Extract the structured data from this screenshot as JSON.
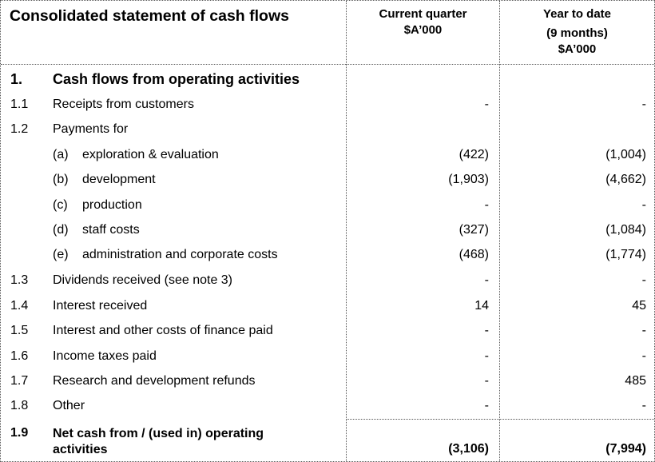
{
  "header": {
    "title": "Consolidated statement of cash flows",
    "col1": [
      "Current quarter",
      "$A’000"
    ],
    "col2": [
      "Year to date",
      "(9 months)",
      "$A’000"
    ]
  },
  "section": {
    "num": "1.",
    "title": "Cash flows from operating activities"
  },
  "rows": [
    {
      "num": "1.1",
      "label": "Receipts from customers",
      "current": "-",
      "ytd": "-"
    },
    {
      "num": "1.2",
      "label": "Payments for",
      "current": "",
      "ytd": ""
    },
    {
      "num": "",
      "letter": "(a)",
      "label": "exploration & evaluation",
      "current": "(422)",
      "ytd": "(1,004)"
    },
    {
      "num": "",
      "letter": "(b)",
      "label": "development",
      "current": "(1,903)",
      "ytd": "(4,662)"
    },
    {
      "num": "",
      "letter": "(c)",
      "label": "production",
      "current": "-",
      "ytd": "-"
    },
    {
      "num": "",
      "letter": "(d)",
      "label": "staff costs",
      "current": "(327)",
      "ytd": "(1,084)"
    },
    {
      "num": "",
      "letter": "(e)",
      "label": "administration and corporate costs",
      "current": "(468)",
      "ytd": "(1,774)"
    },
    {
      "num": "1.3",
      "label": "Dividends received (see note 3)",
      "current": "-",
      "ytd": "-"
    },
    {
      "num": "1.4",
      "label": "Interest received",
      "current": "14",
      "ytd": "45"
    },
    {
      "num": "1.5",
      "label": "Interest and other costs of finance paid",
      "current": "-",
      "ytd": "-"
    },
    {
      "num": "1.6",
      "label": "Income taxes paid",
      "current": "-",
      "ytd": "-"
    },
    {
      "num": "1.7",
      "label": "Research and development refunds",
      "current": "-",
      "ytd": "485"
    },
    {
      "num": "1.8",
      "label": "Other",
      "current": "-",
      "ytd": "-"
    }
  ],
  "net": {
    "num": "1.9",
    "label_line1": "Net cash from / (used in) operating",
    "label_line2": "activities",
    "current": "(3,106)",
    "ytd": "(7,994)"
  }
}
